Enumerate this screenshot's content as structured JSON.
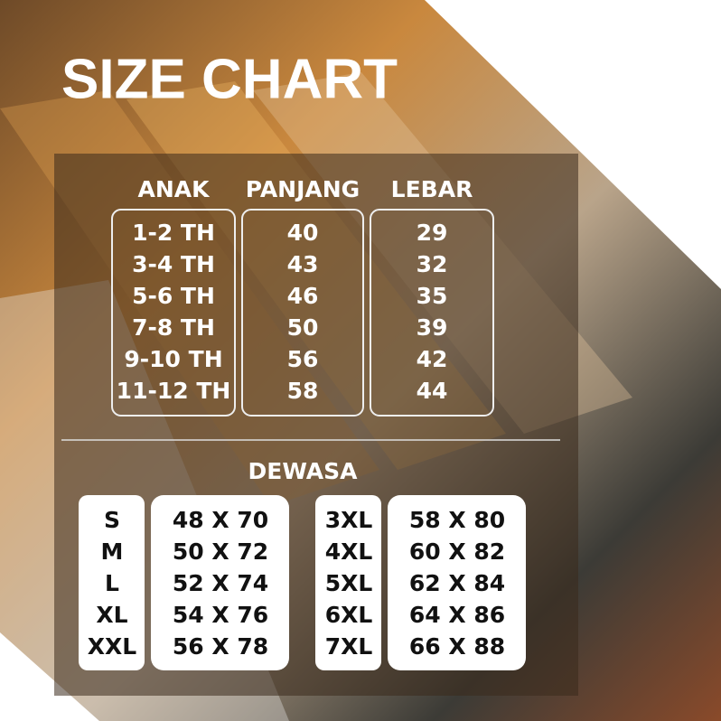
{
  "title": "SIZE CHART",
  "kids": {
    "headers": [
      "ANAK",
      "PANJANG",
      "LEBAR"
    ],
    "rows": [
      [
        "1-2 TH",
        "40",
        "29"
      ],
      [
        "3-4 TH",
        "43",
        "32"
      ],
      [
        "5-6 TH",
        "46",
        "35"
      ],
      [
        "7-8 TH",
        "50",
        "39"
      ],
      [
        "9-10 TH",
        "56",
        "42"
      ],
      [
        "11-12 TH",
        "58",
        "44"
      ]
    ]
  },
  "adult": {
    "title": "DEWASA",
    "left": [
      [
        "S",
        "48 X 70"
      ],
      [
        "M",
        "50 X 72"
      ],
      [
        "L",
        "52 X 74"
      ],
      [
        "XL",
        "54 X 76"
      ],
      [
        "XXL",
        "56 X 78"
      ]
    ],
    "right": [
      [
        "3XL",
        "58 X 80"
      ],
      [
        "4XL",
        "60 X 82"
      ],
      [
        "5XL",
        "62 X 84"
      ],
      [
        "6XL",
        "64 X 86"
      ],
      [
        "7XL",
        "66 X 88"
      ]
    ]
  }
}
